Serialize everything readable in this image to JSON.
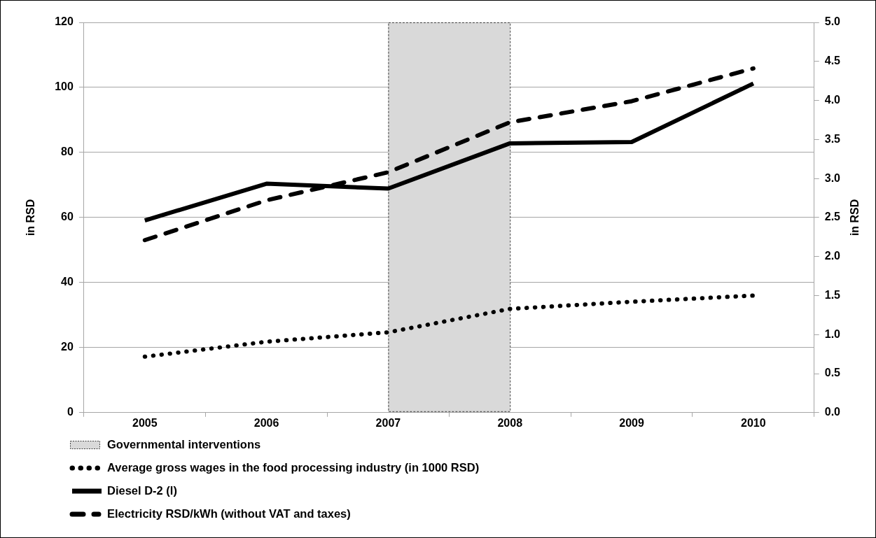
{
  "chart_data": {
    "type": "line",
    "categories": [
      "2005",
      "2006",
      "2007",
      "2008",
      "2009",
      "2010"
    ],
    "ylabel": "in RSD",
    "y2label": "in RSD",
    "ylim": [
      0,
      120
    ],
    "yticks": [
      0,
      20,
      40,
      60,
      80,
      100,
      120
    ],
    "y2lim": [
      0,
      5
    ],
    "y2ticks": [
      {
        "value": 0,
        "label": "0.0"
      },
      {
        "value": 0.5,
        "label": "0.5"
      },
      {
        "value": 1,
        "label": "1.0"
      },
      {
        "value": 1.5,
        "label": "1.5"
      },
      {
        "value": 2,
        "label": "2.0"
      },
      {
        "value": 2.5,
        "label": "2.5"
      },
      {
        "value": 3,
        "label": "3.0"
      },
      {
        "value": 3.5,
        "label": "3.5"
      },
      {
        "value": 4,
        "label": "4.0"
      },
      {
        "value": 4.5,
        "label": "4.5"
      },
      {
        "value": 5,
        "label": "5.0"
      }
    ],
    "series": [
      {
        "name": "Average gross wages in the food processing industry (in 1000 RSD)",
        "color": "#000000",
        "line_style": "dotted",
        "values": [
          17.2,
          21.8,
          24.7,
          31.9,
          34.1,
          36
        ]
      },
      {
        "name": "Diesel D-2 (l)",
        "color": "#000000",
        "line_style": "solid",
        "values": [
          59.1,
          70.4,
          68.9,
          82.8,
          83.2,
          101.2
        ]
      },
      {
        "name": "Electricity RSD/kWh (without VAT and taxes)",
        "color": "#000000",
        "line_style": "dashed",
        "axis": "y2",
        "values": [
          2.21,
          2.72,
          3.08,
          3.72,
          3.99,
          4.41
        ]
      }
    ],
    "bands": [
      {
        "axis": "x",
        "from": "2007",
        "to": "2008",
        "label": "Governmental interventions",
        "color": "#d9d9d9"
      }
    ],
    "grid": "y",
    "legend": "bottom left"
  }
}
